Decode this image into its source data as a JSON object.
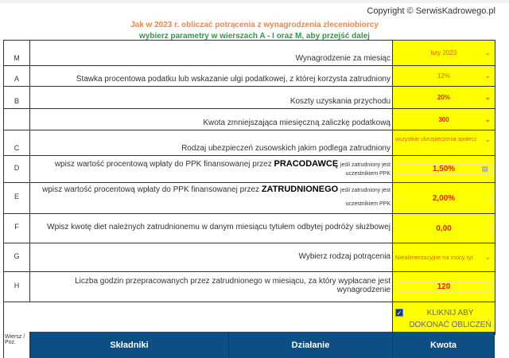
{
  "copyright": "Copyright © SerwisKadrowego.pl",
  "title": "Jak w 2023 r. obliczać potrącenia z wynagrodzenia zleceniobiorcy",
  "subtitle": "wybierz parametry w wierszach A - I oraz M, aby przejść dalej",
  "rows": [
    {
      "letter": "M",
      "label": "Wynagrodzenie za miesiąc",
      "value": "luty 2023",
      "type": "select"
    },
    {
      "letter": "A",
      "label": "Stawka procentowa podatku lub wskazanie ulgi podatkowej, z której korzysta zatrudniony",
      "value": "12%",
      "type": "select"
    },
    {
      "letter": "B",
      "label": "Koszty uzyskania przychodu",
      "value": "20%",
      "type": "select"
    },
    {
      "letter": "",
      "label": "Kwota zmniejszająca miesięczną zaliczkę podatkową",
      "value": "300",
      "type": "select"
    },
    {
      "letter": "C",
      "label": "Rodzaj ubezpieczeń zusowskich jakim podlega zatrudniony",
      "value": "wszystkie ubezpieczenia społecz",
      "type": "select"
    },
    {
      "letter": "D",
      "label_pre": "wpisz wartość procentową wpłaty do PPK finansowanej przez",
      "label_bold": "PRACODAWCĘ",
      "label_small": "jeśli zatrudniony jest uczestnikiem PPK",
      "value": "1,50%",
      "type": "input"
    },
    {
      "letter": "E",
      "label_pre": "wpisz wartość procentową wpłaty do PPK finansowanej przez",
      "label_bold": "ZATRUDNIONEGO",
      "label_small": "jeśli zatrudniony jest uczestnikiem PPK",
      "value": "2,00%",
      "type": "input"
    },
    {
      "letter": "F",
      "label": "Wpisz kwotę diet należnych zatrudnionemu w danym miesiącu tytułem odbytej podróży służbowej",
      "value": "0,00",
      "type": "input"
    },
    {
      "letter": "G",
      "label": "Wybierz rodzaj potrącenia",
      "value": "Niealimentacyjne na mocy tyt",
      "type": "select"
    },
    {
      "letter": "H",
      "label": "Liczba godzin przepracowanych przez zatrudnionego w miesiącu, za który wypłacane jest wynagrodzenie",
      "value": "120",
      "type": "input"
    }
  ],
  "calculate": {
    "label": "KLIKNIJ ABY DOKONAĆ OBLICZEŃ",
    "checked": true
  },
  "header": {
    "col0": "Wiersz / Poz.",
    "col1": "Składniki",
    "col2": "Działanie",
    "col3": "Kwota"
  },
  "colors": {
    "highlight": "#ffff00",
    "header_bg": "#0d4f84",
    "title": "#f0874a",
    "subtitle": "#2e9a4a",
    "value": "#e02020"
  }
}
